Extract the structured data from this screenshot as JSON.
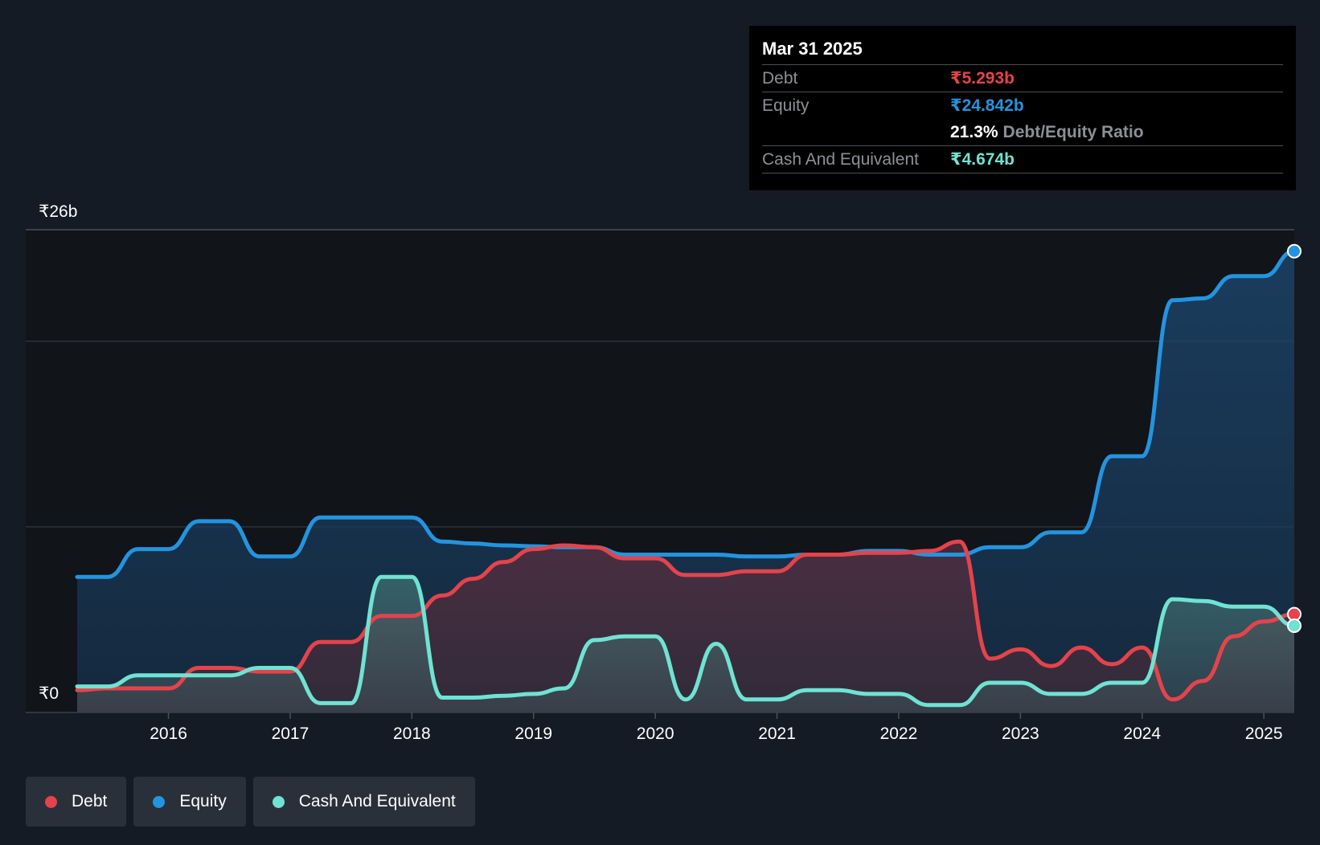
{
  "colors": {
    "debt": "#e5434b",
    "equity": "#2394df",
    "cash": "#6fe3d3",
    "background": "#151b24"
  },
  "tooltip": {
    "date": "Mar 31 2025",
    "debt_label": "Debt",
    "debt_value": "₹5.293b",
    "equity_label": "Equity",
    "equity_value": "₹24.842b",
    "ratio_value": "21.3%",
    "ratio_label": "Debt/Equity Ratio",
    "cash_label": "Cash And Equivalent",
    "cash_value": "₹4.674b"
  },
  "legend": [
    {
      "label": "Debt",
      "color": "#e5434b"
    },
    {
      "label": "Equity",
      "color": "#2394df"
    },
    {
      "label": "Cash And Equivalent",
      "color": "#6fe3d3"
    }
  ],
  "chart_data": {
    "type": "area",
    "y_top_label": "₹26b",
    "y_bottom_label": "₹0",
    "ylim": [
      0,
      26
    ],
    "xlim": [
      2015.25,
      2025.25
    ],
    "x_ticks": [
      {
        "label": "2016",
        "value": 2016
      },
      {
        "label": "2017",
        "value": 2017
      },
      {
        "label": "2018",
        "value": 2018
      },
      {
        "label": "2019",
        "value": 2019
      },
      {
        "label": "2020",
        "value": 2020
      },
      {
        "label": "2021",
        "value": 2021
      },
      {
        "label": "2022",
        "value": 2022
      },
      {
        "label": "2023",
        "value": 2023
      },
      {
        "label": "2024",
        "value": 2024
      },
      {
        "label": "2025",
        "value": 2025
      }
    ],
    "gridlines": [
      26,
      20,
      10
    ],
    "series": [
      {
        "name": "Equity",
        "key": "equity",
        "points": [
          [
            2015.25,
            7.3
          ],
          [
            2015.5,
            7.3
          ],
          [
            2015.75,
            8.8
          ],
          [
            2016.0,
            8.8
          ],
          [
            2016.25,
            10.3
          ],
          [
            2016.5,
            10.3
          ],
          [
            2016.75,
            8.4
          ],
          [
            2017.0,
            8.4
          ],
          [
            2017.25,
            10.5
          ],
          [
            2017.5,
            10.5
          ],
          [
            2017.75,
            10.5
          ],
          [
            2018.0,
            10.5
          ],
          [
            2018.25,
            9.2
          ],
          [
            2018.5,
            9.1
          ],
          [
            2018.75,
            9.0
          ],
          [
            2019.0,
            8.95
          ],
          [
            2019.25,
            8.9
          ],
          [
            2019.5,
            8.9
          ],
          [
            2019.75,
            8.5
          ],
          [
            2020.0,
            8.5
          ],
          [
            2020.25,
            8.5
          ],
          [
            2020.5,
            8.5
          ],
          [
            2020.75,
            8.4
          ],
          [
            2021.0,
            8.4
          ],
          [
            2021.25,
            8.5
          ],
          [
            2021.5,
            8.5
          ],
          [
            2021.75,
            8.7
          ],
          [
            2022.0,
            8.7
          ],
          [
            2022.25,
            8.5
          ],
          [
            2022.5,
            8.5
          ],
          [
            2022.75,
            8.9
          ],
          [
            2023.0,
            8.9
          ],
          [
            2023.25,
            9.7
          ],
          [
            2023.5,
            9.7
          ],
          [
            2023.75,
            13.8
          ],
          [
            2024.0,
            13.8
          ],
          [
            2024.25,
            22.2
          ],
          [
            2024.5,
            22.3
          ],
          [
            2024.75,
            23.5
          ],
          [
            2025.0,
            23.5
          ],
          [
            2025.25,
            24.842
          ]
        ]
      },
      {
        "name": "Debt",
        "key": "debt",
        "points": [
          [
            2015.25,
            1.2
          ],
          [
            2015.5,
            1.3
          ],
          [
            2015.75,
            1.3
          ],
          [
            2016.0,
            1.3
          ],
          [
            2016.25,
            2.4
          ],
          [
            2016.5,
            2.4
          ],
          [
            2016.75,
            2.2
          ],
          [
            2017.0,
            2.2
          ],
          [
            2017.25,
            3.8
          ],
          [
            2017.5,
            3.8
          ],
          [
            2017.75,
            5.2
          ],
          [
            2018.0,
            5.2
          ],
          [
            2018.25,
            6.3
          ],
          [
            2018.5,
            7.2
          ],
          [
            2018.75,
            8.1
          ],
          [
            2019.0,
            8.8
          ],
          [
            2019.25,
            9.0
          ],
          [
            2019.5,
            8.9
          ],
          [
            2019.75,
            8.3
          ],
          [
            2020.0,
            8.3
          ],
          [
            2020.25,
            7.4
          ],
          [
            2020.5,
            7.4
          ],
          [
            2020.75,
            7.6
          ],
          [
            2021.0,
            7.6
          ],
          [
            2021.25,
            8.5
          ],
          [
            2021.5,
            8.5
          ],
          [
            2021.75,
            8.6
          ],
          [
            2022.0,
            8.6
          ],
          [
            2022.25,
            8.7
          ],
          [
            2022.5,
            9.2
          ],
          [
            2022.75,
            2.9
          ],
          [
            2023.0,
            3.4
          ],
          [
            2023.25,
            2.5
          ],
          [
            2023.5,
            3.5
          ],
          [
            2023.75,
            2.6
          ],
          [
            2024.0,
            3.5
          ],
          [
            2024.25,
            0.7
          ],
          [
            2024.5,
            1.7
          ],
          [
            2024.75,
            4.1
          ],
          [
            2025.0,
            4.9
          ],
          [
            2025.25,
            5.293
          ]
        ]
      },
      {
        "name": "Cash And Equivalent",
        "key": "cash",
        "points": [
          [
            2015.25,
            1.4
          ],
          [
            2015.5,
            1.4
          ],
          [
            2015.75,
            2.0
          ],
          [
            2016.0,
            2.0
          ],
          [
            2016.25,
            2.0
          ],
          [
            2016.5,
            2.0
          ],
          [
            2016.75,
            2.4
          ],
          [
            2017.0,
            2.4
          ],
          [
            2017.25,
            0.5
          ],
          [
            2017.5,
            0.5
          ],
          [
            2017.75,
            7.3
          ],
          [
            2018.0,
            7.3
          ],
          [
            2018.25,
            0.8
          ],
          [
            2018.5,
            0.8
          ],
          [
            2018.75,
            0.9
          ],
          [
            2019.0,
            1.0
          ],
          [
            2019.25,
            1.3
          ],
          [
            2019.5,
            3.9
          ],
          [
            2019.75,
            4.1
          ],
          [
            2020.0,
            4.1
          ],
          [
            2020.25,
            0.7
          ],
          [
            2020.5,
            3.7
          ],
          [
            2020.75,
            0.7
          ],
          [
            2021.0,
            0.7
          ],
          [
            2021.25,
            1.2
          ],
          [
            2021.5,
            1.2
          ],
          [
            2021.75,
            1.0
          ],
          [
            2022.0,
            1.0
          ],
          [
            2022.25,
            0.4
          ],
          [
            2022.5,
            0.4
          ],
          [
            2022.75,
            1.6
          ],
          [
            2023.0,
            1.6
          ],
          [
            2023.25,
            1.0
          ],
          [
            2023.5,
            1.0
          ],
          [
            2023.75,
            1.6
          ],
          [
            2024.0,
            1.6
          ],
          [
            2024.25,
            6.1
          ],
          [
            2024.5,
            6.0
          ],
          [
            2024.75,
            5.7
          ],
          [
            2025.0,
            5.7
          ],
          [
            2025.25,
            4.674
          ]
        ]
      }
    ]
  }
}
